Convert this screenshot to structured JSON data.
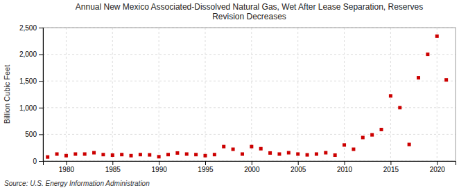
{
  "chart_data": {
    "type": "scatter",
    "title": "Annual New Mexico Associated-Dissolved Natural Gas, Wet After Lease Separation, Reserves\nRevision Decreases",
    "ylabel": "Billion Cubic Feet",
    "source": "Source: U.S. Energy Information Administration",
    "x": [
      1978,
      1979,
      1980,
      1981,
      1982,
      1983,
      1984,
      1985,
      1986,
      1987,
      1988,
      1989,
      1990,
      1991,
      1992,
      1993,
      1994,
      1995,
      1996,
      1997,
      1998,
      1999,
      2000,
      2001,
      2002,
      2003,
      2004,
      2005,
      2006,
      2007,
      2008,
      2009,
      2010,
      2011,
      2012,
      2013,
      2014,
      2015,
      2016,
      2017,
      2018,
      2019,
      2020,
      2021
    ],
    "values": [
      75,
      130,
      100,
      130,
      130,
      155,
      120,
      110,
      120,
      100,
      120,
      115,
      80,
      120,
      150,
      130,
      120,
      100,
      120,
      270,
      220,
      130,
      270,
      230,
      150,
      130,
      155,
      130,
      115,
      130,
      155,
      110,
      300,
      220,
      440,
      490,
      590,
      1220,
      1000,
      310,
      1560,
      2000,
      2340,
      1520
    ],
    "color": "#cc0000",
    "marker": "square",
    "xlim": [
      1977.5,
      2022
    ],
    "xticks": [
      1980,
      1985,
      1990,
      1995,
      2000,
      2005,
      2010,
      2015,
      2020
    ],
    "ylim": [
      0,
      2500
    ],
    "yticks": [
      0,
      500,
      {
        "value": 1000,
        "label": "1,000"
      },
      {
        "value": 1500,
        "label": "1,500"
      },
      {
        "value": 2000,
        "label": "2,000"
      },
      {
        "value": 2500,
        "label": "2,500"
      }
    ],
    "grid": true
  }
}
